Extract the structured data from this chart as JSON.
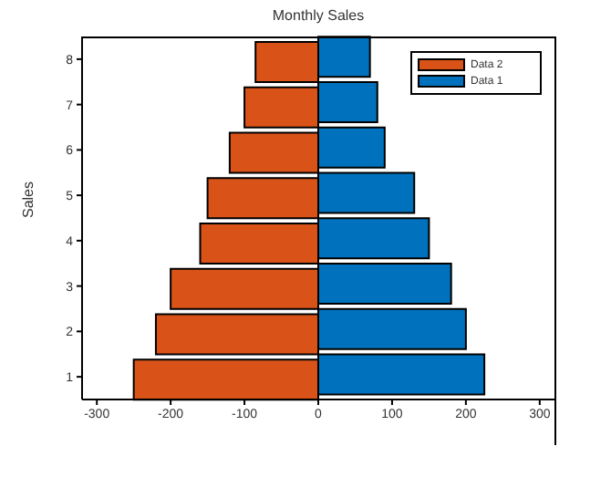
{
  "chart_data": {
    "type": "bar",
    "orientation": "horizontal",
    "title": "Monthly Sales",
    "ylabel": "Sales",
    "categories": [
      "8",
      "7",
      "6",
      "5",
      "4",
      "3",
      "2",
      "1"
    ],
    "series": [
      {
        "name": "Data 2",
        "color": "#d95319",
        "values": [
          -85,
          -100,
          -120,
          -150,
          -160,
          -200,
          -220,
          -250
        ]
      },
      {
        "name": "Data 1",
        "color": "#0072bd",
        "values": [
          70,
          80,
          90,
          130,
          150,
          180,
          200,
          225
        ]
      }
    ],
    "xlim": [
      -320,
      320
    ],
    "xticks": [
      -300,
      -200,
      -100,
      0,
      100,
      200,
      300
    ],
    "legend": "top right",
    "grid": false
  }
}
